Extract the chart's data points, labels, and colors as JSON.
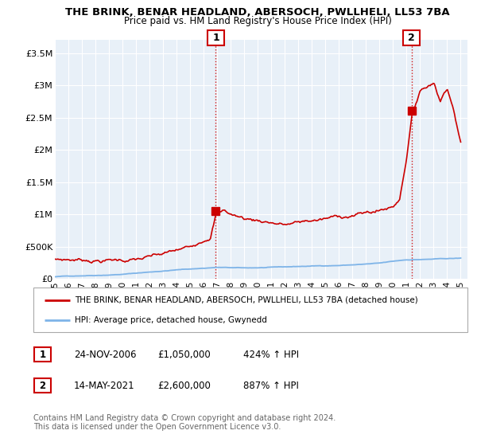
{
  "title": "THE BRINK, BENAR HEADLAND, ABERSOCH, PWLLHELI, LL53 7BA",
  "subtitle": "Price paid vs. HM Land Registry's House Price Index (HPI)",
  "ylabel_ticks": [
    "£0",
    "£500K",
    "£1M",
    "£1.5M",
    "£2M",
    "£2.5M",
    "£3M",
    "£3.5M"
  ],
  "ytick_vals": [
    0,
    500000,
    1000000,
    1500000,
    2000000,
    2500000,
    3000000,
    3500000
  ],
  "ylim": [
    0,
    3700000
  ],
  "xlim_start": 1995.0,
  "xlim_end": 2025.5,
  "hpi_color": "#7EB4E8",
  "house_color": "#CC0000",
  "plot_bg_color": "#E8F0F8",
  "marker1_x": 2006.9,
  "marker1_y": 1050000,
  "marker2_x": 2021.37,
  "marker2_y": 2600000,
  "legend_house_label": "THE BRINK, BENAR HEADLAND, ABERSOCH, PWLLHELI, LL53 7BA (detached house)",
  "legend_hpi_label": "HPI: Average price, detached house, Gwynedd",
  "table_row1": [
    "1",
    "24-NOV-2006",
    "£1,050,000",
    "424% ↑ HPI"
  ],
  "table_row2": [
    "2",
    "14-MAY-2021",
    "£2,600,000",
    "887% ↑ HPI"
  ],
  "footnote": "Contains HM Land Registry data © Crown copyright and database right 2024.\nThis data is licensed under the Open Government Licence v3.0.",
  "background_color": "#ffffff",
  "grid_color": "#ffffff",
  "xticks": [
    1995,
    1996,
    1997,
    1998,
    1999,
    2000,
    2001,
    2002,
    2003,
    2004,
    2005,
    2006,
    2007,
    2008,
    2009,
    2010,
    2011,
    2012,
    2013,
    2014,
    2015,
    2016,
    2017,
    2018,
    2019,
    2020,
    2021,
    2022,
    2023,
    2024,
    2025
  ]
}
